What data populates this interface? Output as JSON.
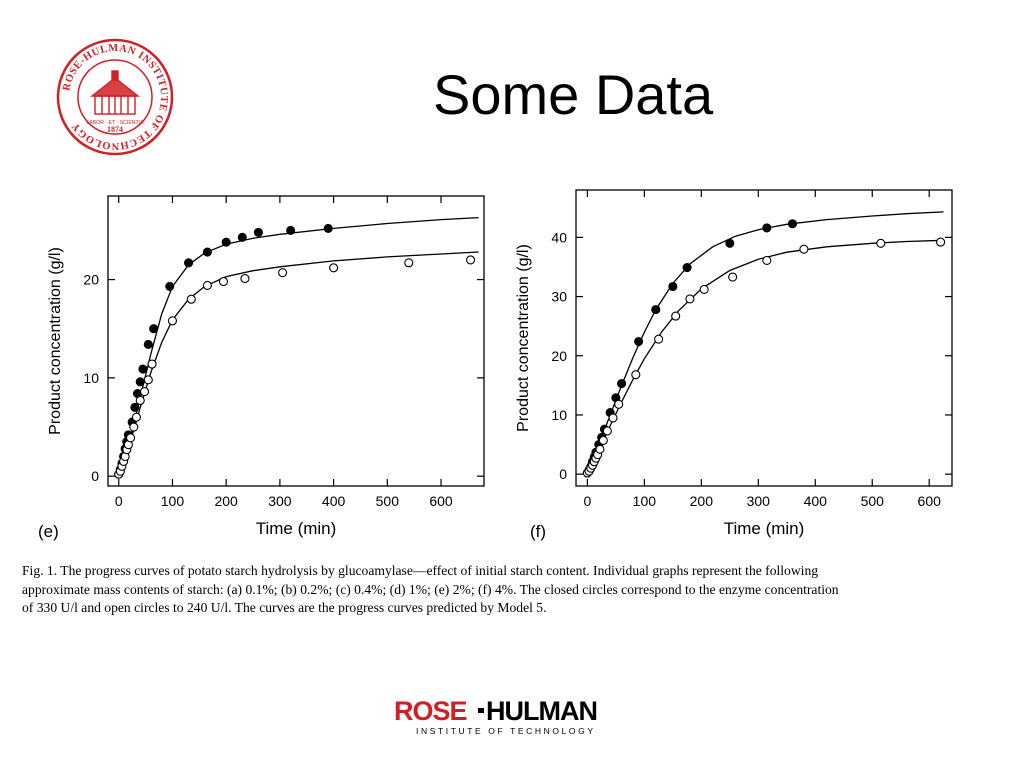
{
  "slide": {
    "title": "Some Data"
  },
  "seal": {
    "ring_text": "ROSE-HULMAN INSTITUTE OF TECHNOLOGY",
    "year": "1874",
    "motto": "LABOR · ET · SCIENTIA",
    "color": "#d21f26"
  },
  "chart_data": [
    {
      "type": "scatter",
      "panel_label": "(e)",
      "xlabel": "Time (min)",
      "ylabel": "Product concentration (g/l)",
      "xlim": [
        -20,
        680
      ],
      "ylim": [
        -1,
        28.5
      ],
      "xticks": [
        0,
        100,
        200,
        300,
        400,
        500,
        600
      ],
      "yticks": [
        0,
        10,
        20
      ],
      "series": [
        {
          "marker": "filled",
          "points": [
            [
              0,
              0.2
            ],
            [
              3,
              0.7
            ],
            [
              6,
              1.3
            ],
            [
              9,
              2.0
            ],
            [
              12,
              2.8
            ],
            [
              15,
              3.5
            ],
            [
              18,
              4.2
            ],
            [
              25,
              5.5
            ],
            [
              30,
              7.0
            ],
            [
              35,
              8.4
            ],
            [
              40,
              9.6
            ],
            [
              45,
              10.9
            ],
            [
              55,
              13.4
            ],
            [
              65,
              15.0
            ],
            [
              95,
              19.3
            ],
            [
              130,
              21.7
            ],
            [
              165,
              22.8
            ],
            [
              200,
              23.8
            ],
            [
              230,
              24.3
            ],
            [
              260,
              24.8
            ],
            [
              320,
              25.0
            ],
            [
              390,
              25.2
            ]
          ]
        },
        {
          "marker": "open",
          "points": [
            [
              0,
              0.2
            ],
            [
              3,
              0.5
            ],
            [
              6,
              1.0
            ],
            [
              9,
              1.5
            ],
            [
              12,
              2.0
            ],
            [
              15,
              2.7
            ],
            [
              18,
              3.2
            ],
            [
              22,
              3.9
            ],
            [
              28,
              5.0
            ],
            [
              33,
              6.0
            ],
            [
              40,
              7.7
            ],
            [
              48,
              8.6
            ],
            [
              55,
              9.8
            ],
            [
              62,
              11.4
            ],
            [
              100,
              15.8
            ],
            [
              135,
              18.0
            ],
            [
              165,
              19.4
            ],
            [
              195,
              19.8
            ],
            [
              235,
              20.1
            ],
            [
              305,
              20.7
            ],
            [
              400,
              21.2
            ],
            [
              540,
              21.7
            ],
            [
              655,
              22.0
            ]
          ]
        }
      ],
      "curves": [
        {
          "points": [
            [
              0,
              0
            ],
            [
              20,
              3.5
            ],
            [
              40,
              8
            ],
            [
              60,
              12.5
            ],
            [
              80,
              16.5
            ],
            [
              100,
              19.3
            ],
            [
              130,
              21.5
            ],
            [
              160,
              22.7
            ],
            [
              200,
              23.6
            ],
            [
              250,
              24.2
            ],
            [
              300,
              24.6
            ],
            [
              400,
              25.2
            ],
            [
              500,
              25.7
            ],
            [
              600,
              26.1
            ],
            [
              670,
              26.3
            ]
          ]
        },
        {
          "points": [
            [
              0,
              0
            ],
            [
              20,
              3.2
            ],
            [
              40,
              7
            ],
            [
              60,
              10.6
            ],
            [
              80,
              13.6
            ],
            [
              100,
              15.9
            ],
            [
              130,
              18.0
            ],
            [
              160,
              19.3
            ],
            [
              200,
              20.3
            ],
            [
              250,
              20.9
            ],
            [
              300,
              21.3
            ],
            [
              400,
              21.9
            ],
            [
              500,
              22.3
            ],
            [
              600,
              22.6
            ],
            [
              670,
              22.8
            ]
          ]
        }
      ]
    },
    {
      "type": "scatter",
      "panel_label": "(f)",
      "xlabel": "Time (min)",
      "ylabel": "Product concentration (g/l)",
      "xlim": [
        -20,
        640
      ],
      "ylim": [
        -2,
        48
      ],
      "xticks": [
        0,
        100,
        200,
        300,
        400,
        500,
        600
      ],
      "yticks": [
        0,
        10,
        20,
        30,
        40
      ],
      "series": [
        {
          "marker": "filled",
          "points": [
            [
              0,
              0.2
            ],
            [
              3,
              0.7
            ],
            [
              6,
              1.3
            ],
            [
              9,
              2.1
            ],
            [
              12,
              2.9
            ],
            [
              15,
              3.7
            ],
            [
              20,
              5.0
            ],
            [
              25,
              6.2
            ],
            [
              30,
              7.6
            ],
            [
              40,
              10.4
            ],
            [
              50,
              12.9
            ],
            [
              60,
              15.3
            ],
            [
              90,
              22.4
            ],
            [
              120,
              27.8
            ],
            [
              150,
              31.7
            ],
            [
              175,
              34.9
            ],
            [
              250,
              39.0
            ],
            [
              315,
              41.6
            ],
            [
              360,
              42.3
            ]
          ]
        },
        {
          "marker": "open",
          "points": [
            [
              0,
              0.2
            ],
            [
              3,
              0.5
            ],
            [
              6,
              1.0
            ],
            [
              9,
              1.5
            ],
            [
              12,
              2.1
            ],
            [
              15,
              2.7
            ],
            [
              18,
              3.3
            ],
            [
              22,
              4.2
            ],
            [
              28,
              5.7
            ],
            [
              35,
              7.3
            ],
            [
              45,
              9.5
            ],
            [
              55,
              11.8
            ],
            [
              85,
              16.8
            ],
            [
              125,
              22.8
            ],
            [
              155,
              26.7
            ],
            [
              180,
              29.6
            ],
            [
              205,
              31.2
            ],
            [
              255,
              33.3
            ],
            [
              315,
              36.1
            ],
            [
              380,
              38.0
            ],
            [
              515,
              39.0
            ],
            [
              620,
              39.2
            ]
          ]
        }
      ],
      "curves": [
        {
          "points": [
            [
              0,
              0
            ],
            [
              20,
              5
            ],
            [
              40,
              10
            ],
            [
              60,
              15
            ],
            [
              80,
              19.7
            ],
            [
              100,
              24
            ],
            [
              120,
              27.8
            ],
            [
              150,
              32.2
            ],
            [
              180,
              35.5
            ],
            [
              220,
              38.4
            ],
            [
              260,
              40.2
            ],
            [
              300,
              41.3
            ],
            [
              350,
              42.2
            ],
            [
              420,
              43.0
            ],
            [
              500,
              43.6
            ],
            [
              560,
              44.0
            ],
            [
              625,
              44.3
            ]
          ]
        },
        {
          "points": [
            [
              0,
              0
            ],
            [
              20,
              4
            ],
            [
              40,
              8.2
            ],
            [
              60,
              12.2
            ],
            [
              80,
              16
            ],
            [
              100,
              19.5
            ],
            [
              130,
              24.0
            ],
            [
              160,
              27.6
            ],
            [
              200,
              31.3
            ],
            [
              250,
              34.4
            ],
            [
              300,
              36.3
            ],
            [
              350,
              37.5
            ],
            [
              420,
              38.4
            ],
            [
              500,
              39.0
            ],
            [
              560,
              39.3
            ],
            [
              625,
              39.5
            ]
          ]
        }
      ]
    }
  ],
  "caption": {
    "line1": "Fig. 1. The progress curves of potato starch hydrolysis by glucoamylase—effect of initial starch content. Individual graphs represent the following",
    "line2": "approximate mass contents of starch: (a) 0.1%; (b) 0.2%; (c) 0.4%; (d) 1%; (e) 2%; (f) 4%. The closed circles correspond to the enzyme concentration",
    "line3": "of 330 U/l and open circles to 240 U/l. The curves are the progress curves predicted by Model 5."
  },
  "footer": {
    "brand_left": "ROSE",
    "brand_right": "HULMAN",
    "subtitle": "INSTITUTE OF TECHNOLOGY",
    "brand_color": "#d21f26"
  }
}
